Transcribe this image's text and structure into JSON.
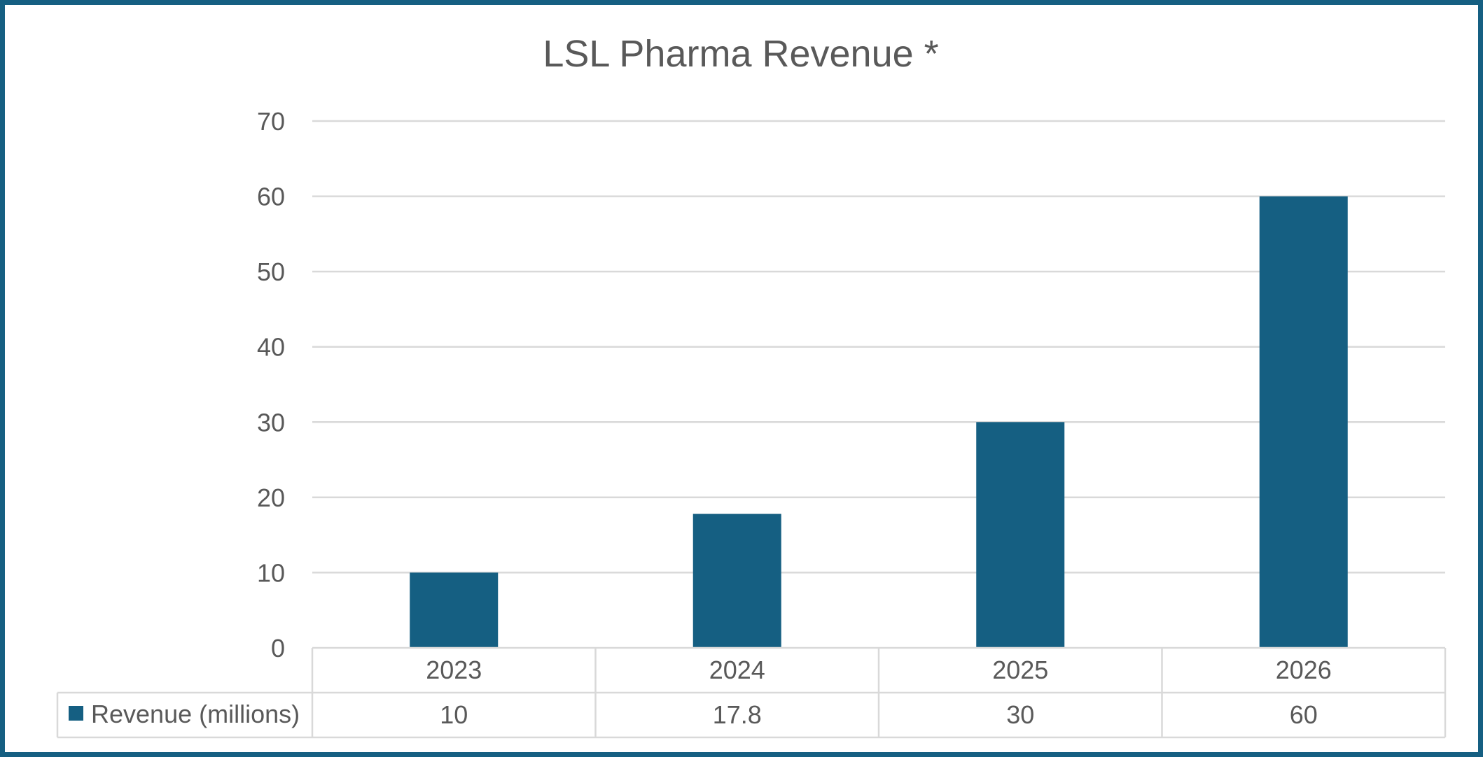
{
  "chart_data": {
    "type": "bar",
    "title": "LSL Pharma Revenue *",
    "categories": [
      "2023",
      "2024",
      "2025",
      "2026"
    ],
    "series": [
      {
        "name": "Revenue (millions)",
        "values": [
          10,
          17.8,
          30,
          60
        ],
        "value_labels": [
          "10",
          "17.8",
          "30",
          "60"
        ],
        "color": "#155f82"
      }
    ],
    "ylim": [
      0,
      70
    ],
    "yticks": [
      0,
      10,
      20,
      30,
      40,
      50,
      60,
      70
    ],
    "xlabel": "",
    "ylabel": "",
    "grid": true,
    "legend": "data table, bottom",
    "colors": {
      "bar": "#155f82",
      "frame": "#155f82",
      "gridline": "#d9d9d9",
      "text": "#595959"
    }
  }
}
